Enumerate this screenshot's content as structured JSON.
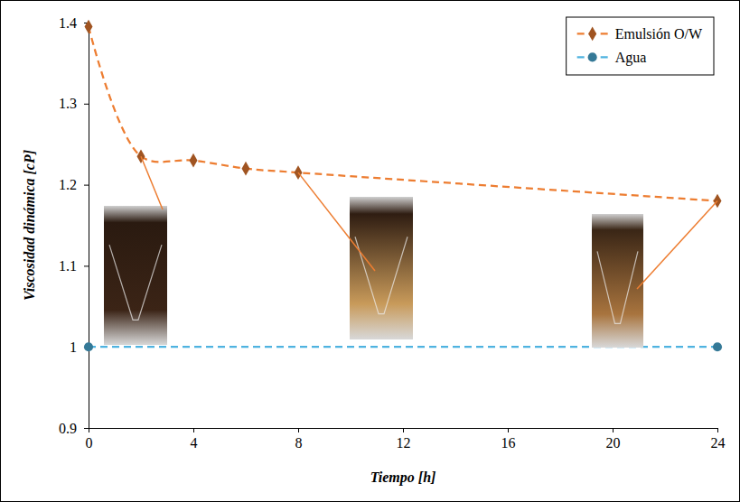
{
  "chart_data": {
    "type": "line",
    "x_label": "Tiempo [h]",
    "y_label": "Viscosidad dinámica [cP]",
    "xlim": [
      0,
      24
    ],
    "xticks": [
      0,
      4,
      8,
      12,
      16,
      20,
      24
    ],
    "ylim": [
      0.9,
      1.4
    ],
    "yticks": [
      0.9,
      1,
      1.1,
      1.2,
      1.3,
      1.4
    ],
    "grid": false,
    "legend": "top-right",
    "series": [
      {
        "name": "Emulsión O/W",
        "color": "#ed7d31",
        "marker": "diamond",
        "line_style": "dashed",
        "x": [
          0,
          2,
          4,
          6,
          8,
          24
        ],
        "values": [
          1.395,
          1.235,
          1.23,
          1.22,
          1.215,
          1.18
        ]
      },
      {
        "name": "Agua",
        "color": "#4fb3e0",
        "marker": "circle",
        "line_style": "dashed",
        "x": [
          0,
          24
        ],
        "values": [
          1,
          1
        ]
      }
    ]
  }
}
